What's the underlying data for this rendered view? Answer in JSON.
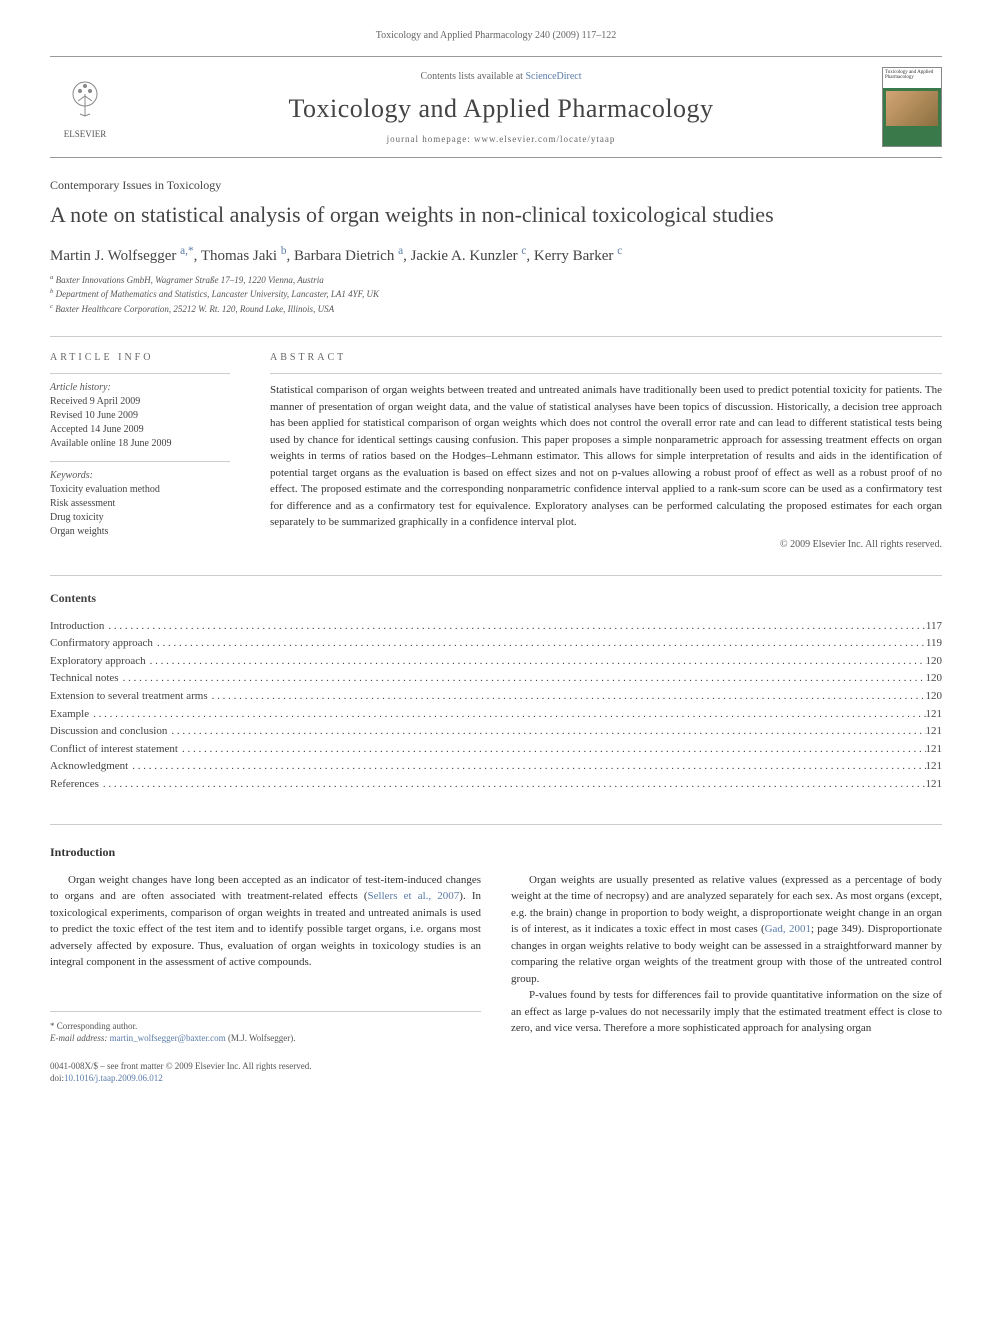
{
  "header": {
    "citation": "Toxicology and Applied Pharmacology 240 (2009) 117–122",
    "contents_prefix": "Contents lists available at ",
    "contents_link": "ScienceDirect",
    "journal_title": "Toxicology and Applied Pharmacology",
    "homepage_label": "journal homepage: ",
    "homepage_url": "www.elsevier.com/locate/ytaap",
    "elsevier_label": "ELSEVIER",
    "cover_text": "Toxicology and Applied Pharmacology"
  },
  "article": {
    "section_label": "Contemporary Issues in Toxicology",
    "title": "A note on statistical analysis of organ weights in non-clinical toxicological studies",
    "authors_html": "Martin J. Wolfsegger",
    "authors": [
      {
        "name": "Martin J. Wolfsegger",
        "sup": "a,*"
      },
      {
        "name": "Thomas Jaki",
        "sup": "b"
      },
      {
        "name": "Barbara Dietrich",
        "sup": "a"
      },
      {
        "name": "Jackie A. Kunzler",
        "sup": "c"
      },
      {
        "name": "Kerry Barker",
        "sup": "c"
      }
    ],
    "affiliations": [
      {
        "sup": "a",
        "text": "Baxter Innovations GmbH, Wagramer Straße 17–19, 1220 Vienna, Austria"
      },
      {
        "sup": "b",
        "text": "Department of Mathematics and Statistics, Lancaster University, Lancaster, LA1 4YF, UK"
      },
      {
        "sup": "c",
        "text": "Baxter Healthcare Corporation, 25212 W. Rt. 120, Round Lake, Illinois, USA"
      }
    ]
  },
  "info": {
    "heading_left": "ARTICLE INFO",
    "heading_right": "ABSTRACT",
    "history_label": "Article history:",
    "history": [
      "Received 9 April 2009",
      "Revised 10 June 2009",
      "Accepted 14 June 2009",
      "Available online 18 June 2009"
    ],
    "keywords_label": "Keywords:",
    "keywords": [
      "Toxicity evaluation method",
      "Risk assessment",
      "Drug toxicity",
      "Organ weights"
    ],
    "abstract": "Statistical comparison of organ weights between treated and untreated animals have traditionally been used to predict potential toxicity for patients. The manner of presentation of organ weight data, and the value of statistical analyses have been topics of discussion. Historically, a decision tree approach has been applied for statistical comparison of organ weights which does not control the overall error rate and can lead to different statistical tests being used by chance for identical settings causing confusion. This paper proposes a simple nonparametric approach for assessing treatment effects on organ weights in terms of ratios based on the Hodges–Lehmann estimator. This allows for simple interpretation of results and aids in the identification of potential target organs as the evaluation is based on effect sizes and not on p-values allowing a robust proof of effect as well as a robust proof of no effect. The proposed estimate and the corresponding nonparametric confidence interval applied to a rank-sum score can be used as a confirmatory test for difference and as a confirmatory test for equivalence. Exploratory analyses can be performed calculating the proposed estimates for each organ separately to be summarized graphically in a confidence interval plot.",
    "copyright": "© 2009 Elsevier Inc. All rights reserved."
  },
  "toc": {
    "heading": "Contents",
    "items": [
      {
        "label": "Introduction",
        "page": "117"
      },
      {
        "label": "Confirmatory approach",
        "page": "119"
      },
      {
        "label": "Exploratory approach",
        "page": "120"
      },
      {
        "label": "Technical notes",
        "page": "120"
      },
      {
        "label": "Extension to several treatment arms",
        "page": "120"
      },
      {
        "label": "Example",
        "page": "121"
      },
      {
        "label": "Discussion and conclusion",
        "page": "121"
      },
      {
        "label": "Conflict of interest statement",
        "page": "121"
      },
      {
        "label": "Acknowledgment",
        "page": "121"
      },
      {
        "label": "References",
        "page": "121"
      }
    ]
  },
  "body": {
    "heading": "Introduction",
    "col1_p1_a": "Organ weight changes have long been accepted as an indicator of test-item-induced changes to organs and are often associated with treatment-related effects (",
    "col1_p1_ref": "Sellers et al., 2007",
    "col1_p1_b": "). In toxicological experiments, comparison of organ weights in treated and untreated animals is used to predict the toxic effect of the test item and to identify possible target organs, i.e. organs most adversely affected by exposure. Thus, evaluation of organ weights in toxicology studies is an integral component in the assessment of active compounds.",
    "col2_p1_a": "Organ weights are usually presented as relative values (expressed as a percentage of body weight at the time of necropsy) and are analyzed separately for each sex. As most organs (except, e.g. the brain) change in proportion to body weight, a disproportionate weight change in an organ is of interest, as it indicates a toxic effect in most cases (",
    "col2_p1_ref": "Gad, 2001",
    "col2_p1_b": "; page 349). Disproportionate changes in organ weights relative to body weight can be assessed in a straightforward manner by comparing the relative organ weights of the treatment group with those of the untreated control group.",
    "col2_p2": "P-values found by tests for differences fail to provide quantitative information on the size of an effect as large p-values do not necessarily imply that the estimated treatment effect is close to zero, and vice versa. Therefore a more sophisticated approach for analysing organ"
  },
  "footer": {
    "corr_label": "* Corresponding author.",
    "email_label": "E-mail address: ",
    "email": "martin_wolfsegger@baxter.com",
    "email_suffix": " (M.J. Wolfsegger).",
    "issn_line": "0041-008X/$ – see front matter © 2009 Elsevier Inc. All rights reserved.",
    "doi_label": "doi:",
    "doi": "10.1016/j.taap.2009.06.012"
  },
  "colors": {
    "link": "#5a7ca8",
    "text": "#333333",
    "muted": "#666666",
    "border": "#cccccc",
    "cover_bg": "#3a7a4a"
  }
}
